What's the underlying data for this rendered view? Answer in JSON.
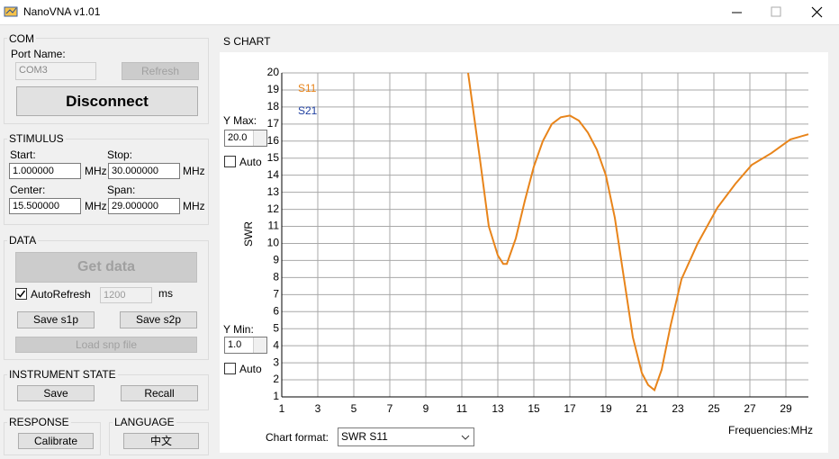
{
  "window": {
    "title": "NanoVNA v1.01"
  },
  "com": {
    "title": "COM",
    "port_label": "Port Name:",
    "port": "COM3",
    "refresh": "Refresh",
    "disconnect": "Disconnect"
  },
  "stimulus": {
    "title": "STIMULUS",
    "start_label": "Start:",
    "start": "1.000000",
    "stop_label": "Stop:",
    "stop": "30.000000",
    "center_label": "Center:",
    "center": "15.500000",
    "span_label": "Span:",
    "span": "29.000000",
    "unit": "MHz"
  },
  "data": {
    "title": "DATA",
    "get_data": "Get data",
    "auto_refresh": "AutoRefresh",
    "interval": "1200",
    "interval_unit": "ms",
    "save_s1p": "Save s1p",
    "save_s2p": "Save s2p",
    "load_snp": "Load snp file"
  },
  "instrument_state": {
    "title": "INSTRUMENT STATE",
    "save": "Save",
    "recall": "Recall"
  },
  "response": {
    "title": "RESPONSE",
    "calibrate": "Calibrate"
  },
  "language": {
    "title": "LANGUAGE",
    "chinese": "中文"
  },
  "s_chart": {
    "title": "S CHART",
    "ymax_label": "Y Max:",
    "ymax": "20.0",
    "ymin_label": "Y Min:",
    "ymin": "1.0",
    "auto": "Auto",
    "format_label": "Chart format:",
    "format": "SWR S11",
    "freq_label": "Frequencies:MHz"
  },
  "chart_data": {
    "type": "line",
    "ylabel": "SWR",
    "x": [
      11.35,
      12,
      12.5,
      13,
      13.3,
      13.5,
      14,
      14.5,
      15,
      15.5,
      16,
      16.5,
      17,
      17.5,
      18,
      18.5,
      19,
      19.5,
      20,
      20.5,
      21,
      21.35,
      21.7,
      22.1,
      22.6,
      23.2,
      24.1,
      25.2,
      26.2,
      27.1,
      28.2,
      29.25,
      30.25
    ],
    "series": [
      {
        "name": "S11",
        "color": "#e8841a",
        "values": [
          20,
          15,
          11,
          9.3,
          8.8,
          8.8,
          10.3,
          12.5,
          14.5,
          16,
          17,
          17.4,
          17.5,
          17.2,
          16.5,
          15.5,
          14,
          11.5,
          8,
          4.5,
          2.4,
          1.7,
          1.4,
          2.6,
          5.2,
          7.9,
          10,
          12.1,
          13.5,
          14.6,
          15.3,
          16.1,
          16.4
        ]
      },
      {
        "name": "S21",
        "color": "#1f3fa0",
        "values": [
          null,
          null,
          null,
          null,
          null,
          null,
          null,
          null,
          null,
          null,
          null,
          null,
          null,
          null,
          null,
          null,
          null,
          null,
          null,
          null,
          null,
          null,
          null,
          null,
          null,
          null,
          null,
          null,
          null,
          null,
          null,
          null,
          null
        ]
      }
    ],
    "xlim": [
      1,
      30.25
    ],
    "xticks": [
      1,
      3,
      5,
      7,
      9,
      11,
      13,
      15,
      17,
      19,
      21,
      23,
      25,
      27,
      29
    ],
    "ylim": [
      1,
      20
    ],
    "yticks": [
      1,
      2,
      3,
      4,
      5,
      6,
      7,
      8,
      9,
      10,
      11,
      12,
      13,
      14,
      15,
      16,
      17,
      18,
      19,
      20
    ],
    "grid": true
  }
}
